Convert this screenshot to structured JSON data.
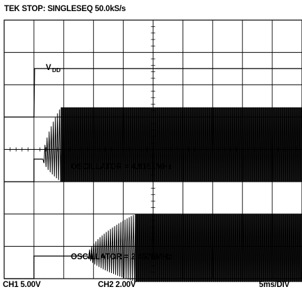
{
  "header": {
    "status": "TEK STOP: SINGLESEQ 50.0kS/s"
  },
  "footer": {
    "ch1_scale": "CH1 5.00V",
    "ch2_scale": "CH2 2.00V",
    "timebase": "5ms/DIV"
  },
  "chart_data": {
    "type": "line",
    "title": "",
    "x_unit": "ms",
    "xlim": [
      0,
      50
    ],
    "grid": true,
    "divisions": {
      "horizontal": 10,
      "vertical": 8
    },
    "annotations": {
      "vdd_main": "V",
      "vdd_sub": "DD",
      "osc1": "OSCILLATOR = 4.9152MHz",
      "osc2": "OSCILLATOR = 2.4576MHz"
    },
    "series": [
      {
        "channel": "CH1",
        "x": [
          0,
          5,
          5.1,
          50
        ],
        "y": [
          0,
          0,
          7.5,
          7.5
        ]
      },
      {
        "channel": "CH2",
        "osc_start_ms": 6.5,
        "settle_ms": 9.5,
        "frequency": "4.9152MHz"
      },
      {
        "channel": "CH2",
        "osc_start_ms": 14,
        "settle_ms": 22,
        "frequency": "2.4576MHz"
      }
    ],
    "ch2_edge": [
      {
        "x": [
          0,
          5,
          5.1,
          50
        ],
        "y": [
          0,
          0,
          2,
          2
        ]
      },
      {
        "x": [
          0,
          5,
          5.1,
          50
        ],
        "y": [
          0,
          0,
          2,
          2
        ]
      }
    ]
  }
}
